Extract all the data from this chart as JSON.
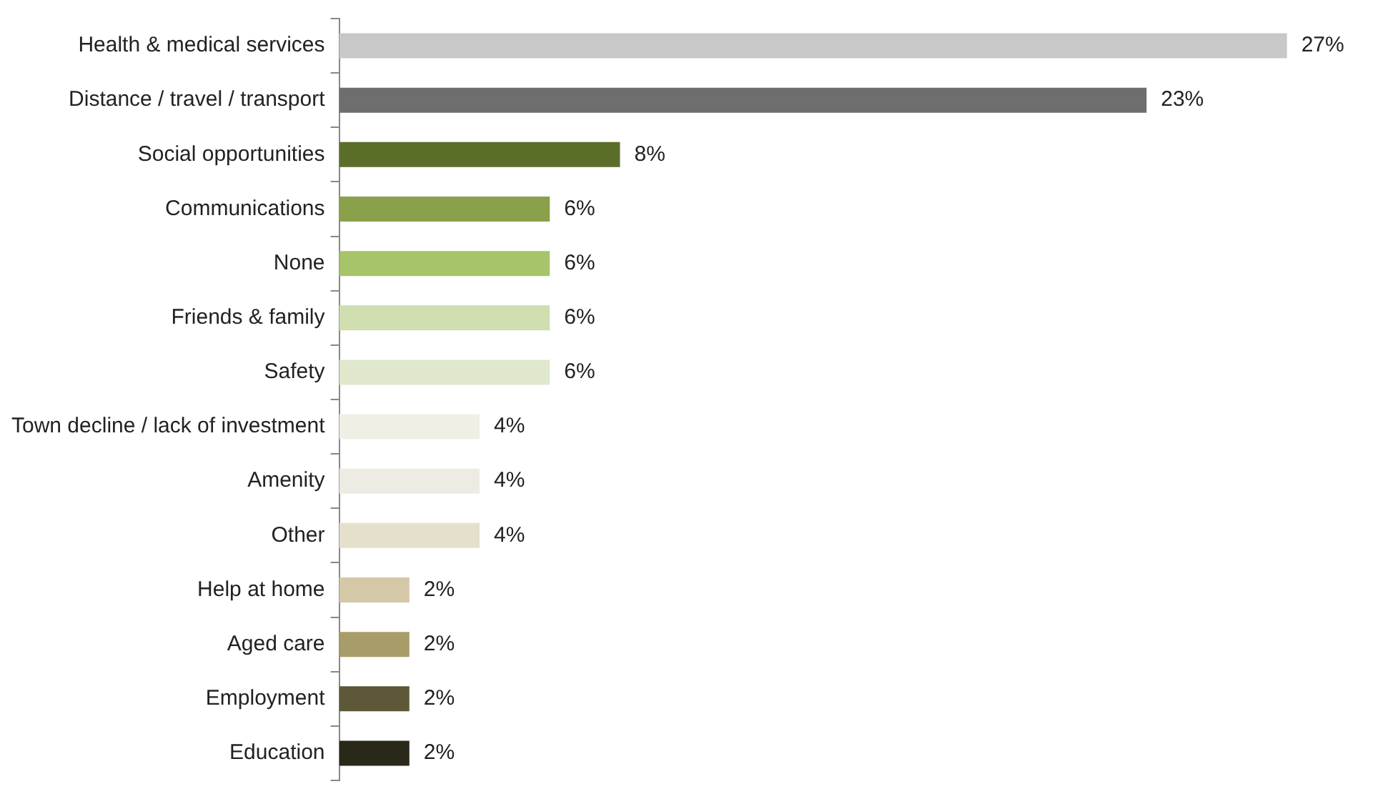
{
  "chart_data": {
    "type": "bar",
    "orientation": "horizontal",
    "categories": [
      "Health & medical services",
      "Distance / travel / transport",
      "Social opportunities",
      "Communications",
      "None",
      "Friends & family",
      "Safety",
      "Town decline / lack of investment",
      "Amenity",
      "Other",
      "Help at home",
      "Aged care",
      "Employment",
      "Education"
    ],
    "values": [
      27,
      23,
      8,
      6,
      6,
      6,
      6,
      4,
      4,
      4,
      2,
      2,
      2,
      2
    ],
    "value_labels": [
      "27%",
      "23%",
      "8%",
      "6%",
      "6%",
      "6%",
      "6%",
      "4%",
      "4%",
      "4%",
      "2%",
      "2%",
      "2%",
      "2%"
    ],
    "colors": [
      "#c8c8c8",
      "#6e6e6e",
      "#5a6e2a",
      "#8aa04a",
      "#a8c46a",
      "#d0deb0",
      "#dfe8cc",
      "#efefe5",
      "#eeece2",
      "#e4e0cc",
      "#d4c8a8",
      "#a89c68",
      "#5c5838",
      "#2a2818"
    ],
    "tick_labels": "y",
    "grid": false,
    "legend": false
  }
}
